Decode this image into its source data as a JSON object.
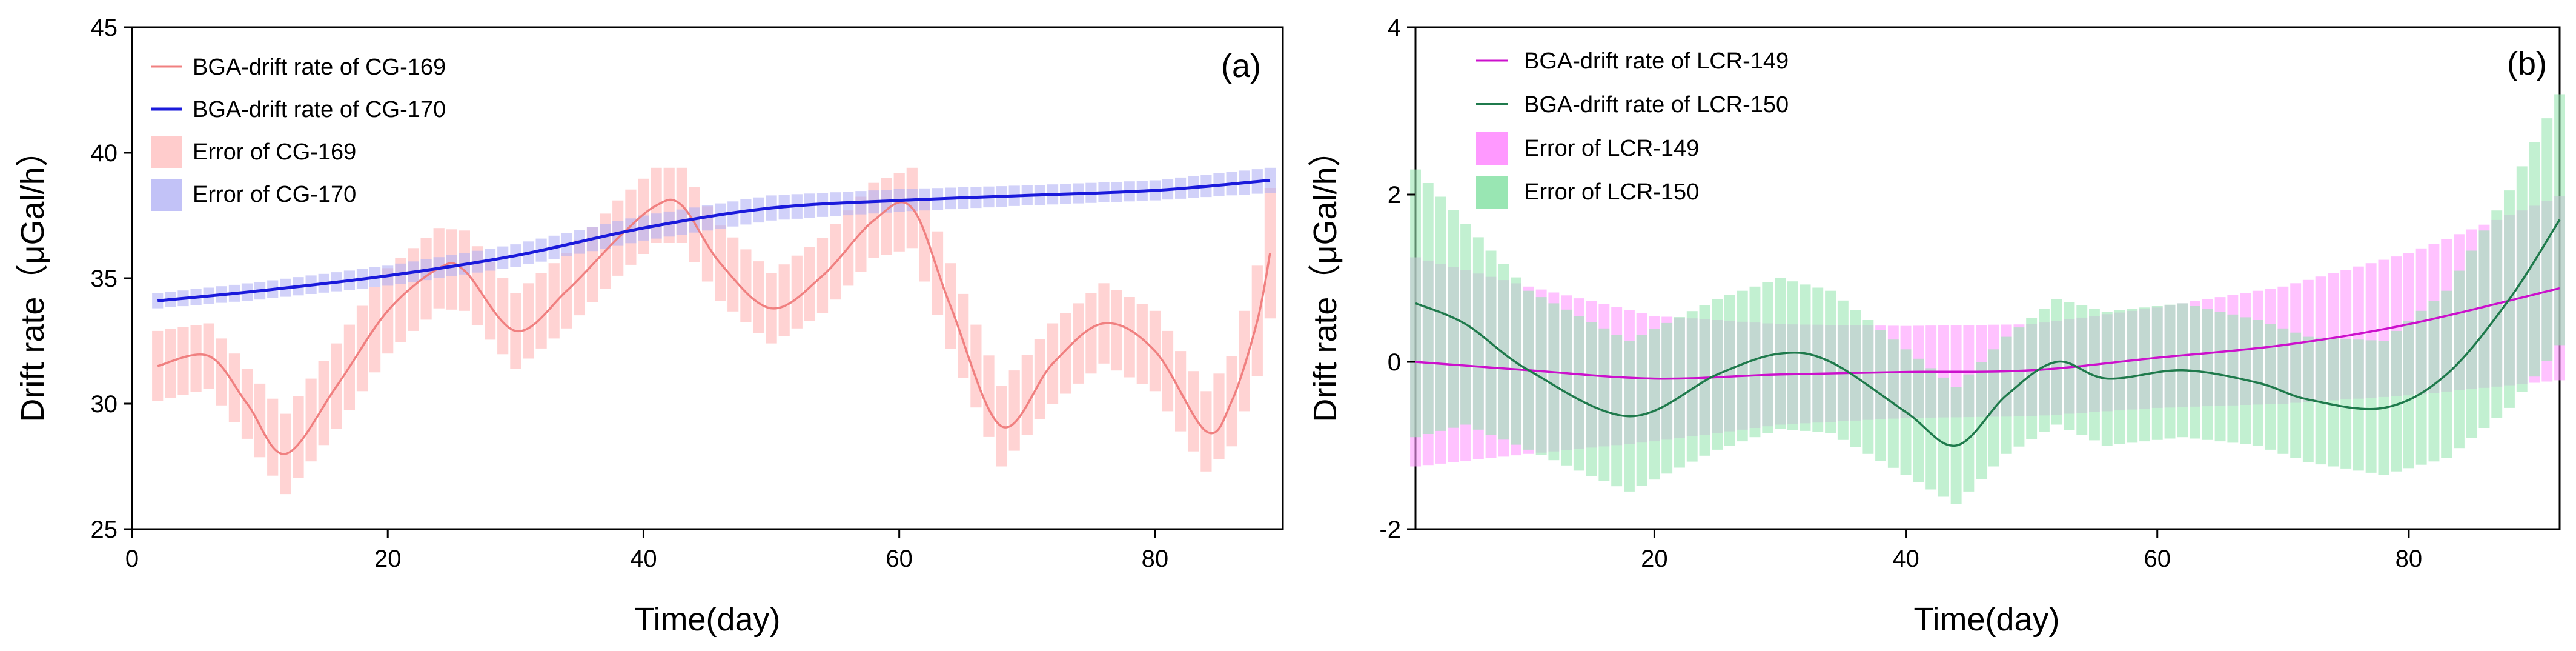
{
  "chart_data": [
    {
      "type": "line",
      "panel_label": "(a)",
      "xlabel": "Time(day)",
      "ylabel": "Drift rate（μGal/h）",
      "xlim": [
        0,
        90
      ],
      "ylim": [
        25,
        45
      ],
      "xticks": [
        0,
        20,
        40,
        60,
        80
      ],
      "yticks": [
        25,
        30,
        35,
        40,
        45
      ],
      "legend_position": "top-left",
      "series": [
        {
          "name": "BGA-drift rate of CG-169",
          "legend_label": "BGA-drift rate of CG-169",
          "error_label": "Error of CG-169",
          "color": "#f08080",
          "band_color": "#ffb6b6",
          "x": [
            2,
            6,
            9,
            12,
            16,
            20,
            24,
            26,
            30,
            34,
            38,
            41,
            43,
            46,
            50,
            54,
            58,
            61,
            64,
            68,
            72,
            76,
            80,
            84,
            86,
            88,
            89
          ],
          "values": [
            31.5,
            31.9,
            30.0,
            28.0,
            30.7,
            33.7,
            35.4,
            35.3,
            32.9,
            34.5,
            36.6,
            37.9,
            37.9,
            35.6,
            33.8,
            35.1,
            37.3,
            37.8,
            33.9,
            29.1,
            31.6,
            33.2,
            32.1,
            28.9,
            30.1,
            33.3,
            36.0
          ],
          "error": [
            1.4,
            1.3,
            1.4,
            1.6,
            1.7,
            1.7,
            1.6,
            1.6,
            1.5,
            1.5,
            1.5,
            1.5,
            1.5,
            1.5,
            1.4,
            1.5,
            1.5,
            1.6,
            1.7,
            1.6,
            1.6,
            1.6,
            1.6,
            1.6,
            1.8,
            2.2,
            2.6
          ]
        },
        {
          "name": "BGA-drift rate of CG-170",
          "legend_label": "BGA-drift rate of CG-170",
          "error_label": "Error of CG-170",
          "color": "#1a1adb",
          "band_color": "#b3b3f5",
          "x": [
            2,
            10,
            20,
            30,
            40,
            50,
            60,
            70,
            80,
            89
          ],
          "values": [
            34.1,
            34.5,
            35.1,
            35.9,
            37.0,
            37.8,
            38.1,
            38.3,
            38.5,
            38.9
          ],
          "error": [
            0.3,
            0.35,
            0.4,
            0.45,
            0.5,
            0.5,
            0.45,
            0.4,
            0.4,
            0.5
          ]
        }
      ]
    },
    {
      "type": "line",
      "panel_label": "(b)",
      "xlabel": "Time(day)",
      "ylabel": "Drift rate（μGal/h）",
      "xlim": [
        1,
        92
      ],
      "ylim": [
        -2,
        4
      ],
      "xticks": [
        20,
        40,
        60,
        80
      ],
      "yticks": [
        -2,
        0,
        2,
        4
      ],
      "legend_position": "top-left",
      "series": [
        {
          "name": "BGA-drift rate of LCR-149",
          "legend_label": "BGA-drift rate of LCR-149",
          "error_label": "Error of LCR-149",
          "color": "#cc11cc",
          "band_color": "#ff99ff",
          "x": [
            1,
            10,
            20,
            30,
            40,
            50,
            60,
            70,
            80,
            92
          ],
          "values": [
            0.0,
            -0.1,
            -0.2,
            -0.15,
            -0.12,
            -0.1,
            0.05,
            0.2,
            0.45,
            0.88
          ],
          "error": [
            1.25,
            1.0,
            0.75,
            0.6,
            0.55,
            0.55,
            0.6,
            0.7,
            0.85,
            1.1
          ]
        },
        {
          "name": "BGA-drift rate of LCR-150",
          "legend_label": "BGA-drift rate of LCR-150",
          "error_label": "Error of LCR-150",
          "color": "#1f7a4c",
          "band_color": "#99e6b3",
          "x": [
            1,
            5,
            10,
            18,
            25,
            30,
            34,
            40,
            44,
            48,
            52,
            56,
            62,
            68,
            72,
            78,
            83,
            88,
            92
          ],
          "values": [
            0.7,
            0.45,
            -0.1,
            -0.65,
            -0.15,
            0.1,
            0.0,
            -0.6,
            -1.0,
            -0.4,
            0.0,
            -0.2,
            -0.1,
            -0.25,
            -0.45,
            -0.55,
            -0.15,
            0.75,
            1.7
          ],
          "error": [
            1.6,
            1.2,
            0.95,
            0.9,
            0.9,
            0.9,
            0.85,
            0.75,
            0.7,
            0.7,
            0.75,
            0.8,
            0.8,
            0.75,
            0.75,
            0.8,
            1.0,
            1.3,
            1.5
          ]
        }
      ]
    }
  ]
}
